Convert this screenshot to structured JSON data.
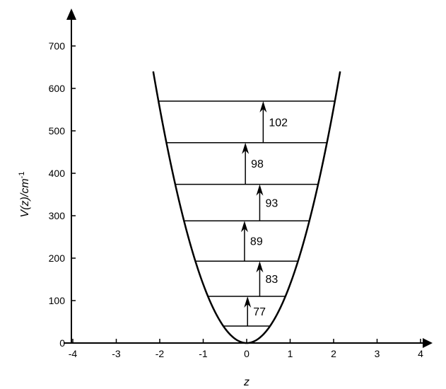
{
  "chart_data": {
    "type": "line",
    "xlabel": "z",
    "ylabel": {
      "main": "V(z)/cm",
      "superscript": "-1"
    },
    "xlim": [
      -4,
      4
    ],
    "ylim": [
      0,
      700
    ],
    "x_ticks": [
      -4,
      -3,
      -2,
      -1,
      0,
      1,
      2,
      3,
      4
    ],
    "y_ticks": [
      0,
      100,
      200,
      300,
      400,
      500,
      600,
      700
    ],
    "grid": false,
    "legend": "none",
    "potential_curve": {
      "shape": "parabola",
      "vertex": [
        0,
        0
      ],
      "points": [
        {
          "z": -2.15,
          "v": 640
        },
        {
          "z": -2.0,
          "v": 555
        },
        {
          "z": -1.5,
          "v": 312
        },
        {
          "z": -1.0,
          "v": 139
        },
        {
          "z": -0.5,
          "v": 35
        },
        {
          "z": 0,
          "v": 0
        },
        {
          "z": 0.5,
          "v": 35
        },
        {
          "z": 1.0,
          "v": 139
        },
        {
          "z": 1.5,
          "v": 312
        },
        {
          "z": 2.0,
          "v": 555
        },
        {
          "z": 2.15,
          "v": 640
        }
      ]
    },
    "energy_levels": [
      40,
      110,
      193,
      288,
      374,
      472,
      570
    ],
    "transitions": [
      {
        "x": 0.02,
        "from": 40,
        "to": 110,
        "label": "77"
      },
      {
        "x": 0.3,
        "from": 110,
        "to": 193,
        "label": "83"
      },
      {
        "x": -0.05,
        "from": 193,
        "to": 288,
        "label": "89"
      },
      {
        "x": 0.3,
        "from": 288,
        "to": 374,
        "label": "93"
      },
      {
        "x": -0.03,
        "from": 374,
        "to": 472,
        "label": "98"
      },
      {
        "x": 0.38,
        "from": 472,
        "to": 570,
        "label": "102"
      }
    ]
  }
}
